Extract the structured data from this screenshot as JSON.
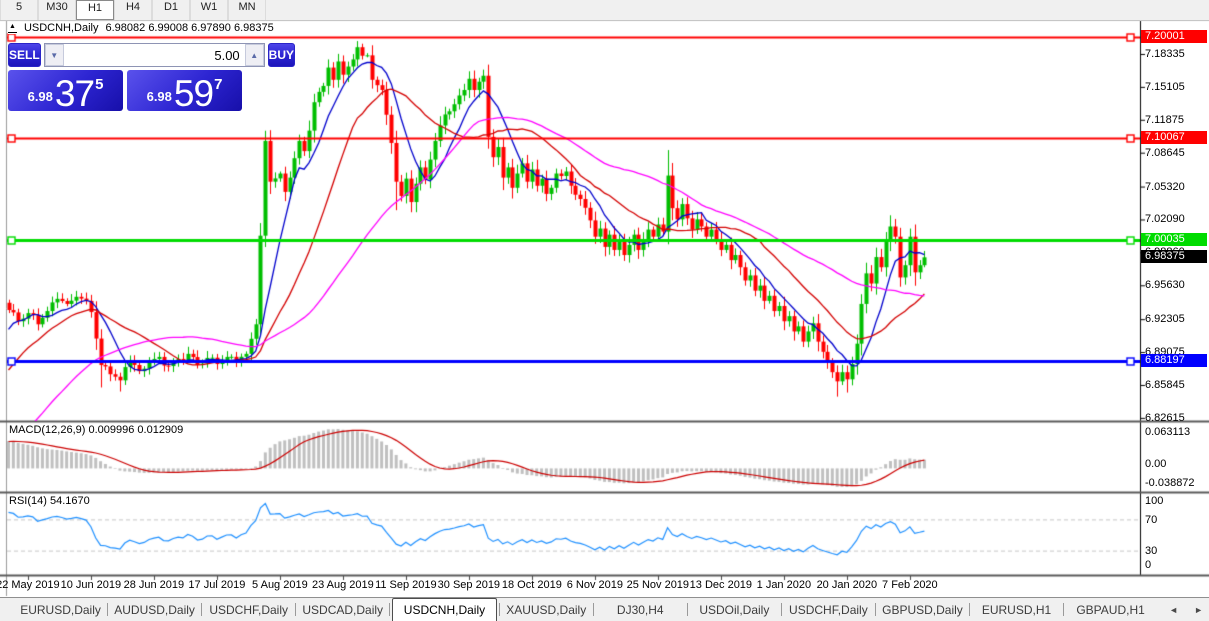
{
  "toolbar": {
    "timeframes": [
      {
        "label": "5",
        "active": false
      },
      {
        "label": "M30",
        "active": false
      },
      {
        "label": "H1",
        "active": true
      },
      {
        "label": "H4",
        "active": false
      },
      {
        "label": "D1",
        "active": false
      },
      {
        "label": "W1",
        "active": false
      },
      {
        "label": "MN",
        "active": false
      }
    ]
  },
  "title": {
    "collapse_icon": "▲",
    "symbol": "USDCNH,Daily",
    "ohlc": "6.98082 6.99008 6.97890 6.98375"
  },
  "one_click": {
    "sell_label": "SELL",
    "buy_label": "BUY",
    "volume": "5.00",
    "spinner_down": "▼",
    "spinner_up": "▲",
    "sell_price": {
      "prefix": "6.98",
      "big": "37",
      "sup": "5"
    },
    "buy_price": {
      "prefix": "6.98",
      "big": "59",
      "sup": "7"
    }
  },
  "price_axis": {
    "tick_labels": [
      "7.18335",
      "7.15105",
      "7.11875",
      "7.08645",
      "7.05320",
      "7.02090",
      "6.98860",
      "6.95630",
      "6.92305",
      "6.89075",
      "6.85845",
      "6.82615"
    ]
  },
  "current_price_label": {
    "text": "6.98375",
    "price": 6.98375,
    "bg": "#000000",
    "fg": "#ffffff"
  },
  "macd_panel": {
    "label": "MACD(12,26,9) 0.009996 0.012909",
    "axis_labels": [
      "0.063113",
      "0.00",
      "-0.038872"
    ]
  },
  "rsi_panel": {
    "label": "RSI(14) 54.1670",
    "axis_labels": [
      "100",
      "70",
      "30",
      "0"
    ]
  },
  "date_axis": {
    "labels": [
      "22 May 2019",
      "10 Jun 2019",
      "28 Jun 2019",
      "17 Jul 2019",
      "5 Aug 2019",
      "23 Aug 2019",
      "11 Sep 2019",
      "30 Sep 2019",
      "18 Oct 2019",
      "6 Nov 2019",
      "25 Nov 2019",
      "13 Dec 2019",
      "1 Jan 2020",
      "20 Jan 2020",
      "7 Feb 2020"
    ]
  },
  "tabs": {
    "items": [
      "EURUSD,Daily",
      "AUDUSD,Daily",
      "USDCHF,Daily",
      "USDCAD,Daily",
      "USDCNH,Daily",
      "XAUUSD,Daily",
      "DJ30,H4",
      "USDOil,Daily",
      "USDCHF,Daily",
      "GBPUSD,Daily",
      "EURUSD,H1",
      "GBPAUD,H1"
    ],
    "active_index": 4,
    "scroll_left": "◄",
    "scroll_right": "►"
  },
  "chart_data": {
    "type": "candlestick",
    "symbol": "USDCNH",
    "timeframe": "Daily",
    "last_ohlc": {
      "open": 6.98082,
      "high": 6.99008,
      "low": 6.9789,
      "close": 6.98375
    },
    "y_axis": {
      "min": 6.82615,
      "max": 7.20001,
      "ticks": [
        7.18335,
        7.15105,
        7.11875,
        7.08645,
        7.0532,
        7.0209,
        6.9886,
        6.9563,
        6.92305,
        6.89075,
        6.85845,
        6.82615
      ]
    },
    "x_axis_dates": [
      "22 May 2019",
      "10 Jun 2019",
      "28 Jun 2019",
      "17 Jul 2019",
      "5 Aug 2019",
      "23 Aug 2019",
      "11 Sep 2019",
      "30 Sep 2019",
      "18 Oct 2019",
      "6 Nov 2019",
      "25 Nov 2019",
      "13 Dec 2019",
      "1 Jan 2020",
      "20 Jan 2020",
      "7 Feb 2020"
    ],
    "candles_per_date_tick": 13,
    "first_date_tick_index": 4,
    "num_candles": 190,
    "close_anchors": [
      [
        0,
        6.932
      ],
      [
        2,
        6.921
      ],
      [
        4,
        6.929
      ],
      [
        6,
        6.918
      ],
      [
        8,
        6.931
      ],
      [
        10,
        6.943
      ],
      [
        12,
        6.938
      ],
      [
        14,
        6.945
      ],
      [
        16,
        6.941
      ],
      [
        17,
        6.93
      ],
      [
        18,
        6.904
      ],
      [
        19,
        6.878
      ],
      [
        21,
        6.869
      ],
      [
        23,
        6.863
      ],
      [
        24,
        6.876
      ],
      [
        25,
        6.883
      ],
      [
        27,
        6.872
      ],
      [
        29,
        6.881
      ],
      [
        31,
        6.886
      ],
      [
        33,
        6.877
      ],
      [
        35,
        6.884
      ],
      [
        37,
        6.889
      ],
      [
        39,
        6.878
      ],
      [
        41,
        6.885
      ],
      [
        43,
        6.879
      ],
      [
        45,
        6.886
      ],
      [
        47,
        6.881
      ],
      [
        49,
        6.889
      ],
      [
        51,
        6.918
      ],
      [
        52,
        7.005
      ],
      [
        53,
        7.098
      ],
      [
        54,
        7.058
      ],
      [
        56,
        7.066
      ],
      [
        57,
        7.048
      ],
      [
        58,
        7.062
      ],
      [
        60,
        7.098
      ],
      [
        61,
        7.088
      ],
      [
        63,
        7.136
      ],
      [
        65,
        7.152
      ],
      [
        66,
        7.17
      ],
      [
        67,
        7.158
      ],
      [
        68,
        7.176
      ],
      [
        69,
        7.163
      ],
      [
        71,
        7.178
      ],
      [
        72,
        7.19
      ],
      [
        74,
        7.182
      ],
      [
        75,
        7.158
      ],
      [
        77,
        7.148
      ],
      [
        79,
        7.096
      ],
      [
        80,
        7.058
      ],
      [
        81,
        7.044
      ],
      [
        82,
        7.061
      ],
      [
        83,
        7.038
      ],
      [
        84,
        7.056
      ],
      [
        85,
        7.072
      ],
      [
        86,
        7.06
      ],
      [
        88,
        7.098
      ],
      [
        90,
        7.124
      ],
      [
        92,
        7.134
      ],
      [
        94,
        7.148
      ],
      [
        95,
        7.159
      ],
      [
        96,
        7.148
      ],
      [
        98,
        7.162
      ],
      [
        99,
        7.102
      ],
      [
        100,
        7.082
      ],
      [
        101,
        7.092
      ],
      [
        102,
        7.062
      ],
      [
        103,
        7.072
      ],
      [
        104,
        7.052
      ],
      [
        105,
        7.066
      ],
      [
        106,
        7.076
      ],
      [
        107,
        7.058
      ],
      [
        108,
        7.07
      ],
      [
        109,
        7.054
      ],
      [
        110,
        7.061
      ],
      [
        111,
        7.046
      ],
      [
        112,
        7.052
      ],
      [
        113,
        7.066
      ],
      [
        115,
        7.068
      ],
      [
        116,
        7.054
      ],
      [
        118,
        7.041
      ],
      [
        120,
        7.02
      ],
      [
        121,
        7.004
      ],
      [
        122,
        7.012
      ],
      [
        123,
        6.994
      ],
      [
        124,
        7.006
      ],
      [
        125,
        6.991
      ],
      [
        126,
        7.001
      ],
      [
        127,
        6.986
      ],
      [
        128,
        6.996
      ],
      [
        129,
        7.006
      ],
      [
        130,
        6.991
      ],
      [
        131,
        7.001
      ],
      [
        132,
        7.011
      ],
      [
        133,
        7.004
      ],
      [
        134,
        7.016
      ],
      [
        135,
        7.009
      ],
      [
        136,
        7.064
      ],
      [
        137,
        7.032
      ],
      [
        138,
        7.021
      ],
      [
        139,
        7.036
      ],
      [
        140,
        7.022
      ],
      [
        141,
        7.011
      ],
      [
        142,
        7.021
      ],
      [
        143,
        7.014
      ],
      [
        144,
        7.004
      ],
      [
        145,
        7.011
      ],
      [
        146,
        7.001
      ],
      [
        147,
        6.991
      ],
      [
        148,
        6.996
      ],
      [
        149,
        6.981
      ],
      [
        150,
        6.986
      ],
      [
        151,
        6.974
      ],
      [
        152,
        6.961
      ],
      [
        153,
        6.966
      ],
      [
        154,
        6.951
      ],
      [
        155,
        6.956
      ],
      [
        156,
        6.941
      ],
      [
        157,
        6.946
      ],
      [
        158,
        6.931
      ],
      [
        159,
        6.936
      ],
      [
        160,
        6.921
      ],
      [
        161,
        6.926
      ],
      [
        162,
        6.911
      ],
      [
        163,
        6.916
      ],
      [
        164,
        6.901
      ],
      [
        165,
        6.911
      ],
      [
        166,
        6.919
      ],
      [
        167,
        6.901
      ],
      [
        168,
        6.891
      ],
      [
        169,
        6.881
      ],
      [
        170,
        6.871
      ],
      [
        171,
        6.862
      ],
      [
        172,
        6.871
      ],
      [
        173,
        6.864
      ],
      [
        174,
        6.879
      ],
      [
        175,
        6.899
      ],
      [
        176,
        6.938
      ],
      [
        177,
        6.968
      ],
      [
        178,
        6.958
      ],
      [
        179,
        6.984
      ],
      [
        180,
        6.974
      ],
      [
        181,
        6.999
      ],
      [
        182,
        7.014
      ],
      [
        183,
        7.004
      ],
      [
        184,
        6.964
      ],
      [
        185,
        6.976
      ],
      [
        186,
        7.004
      ],
      [
        187,
        6.969
      ],
      [
        188,
        6.976
      ],
      [
        189,
        6.98375
      ]
    ],
    "wick_overrides": {
      "19": {
        "low": 6.856
      },
      "23": {
        "low": 6.852
      },
      "53": {
        "high": 7.108
      },
      "56": {
        "high": 7.068
      },
      "66": {
        "high": 7.178
      },
      "72": {
        "high": 7.196
      },
      "80": {
        "low": 7.03
      },
      "83": {
        "low": 7.028
      },
      "98": {
        "high": 7.168
      },
      "121": {
        "low": 6.997
      },
      "136": {
        "high": 7.089
      },
      "171": {
        "low": 6.847
      },
      "173": {
        "low": 6.851
      },
      "182": {
        "high": 7.025
      },
      "186": {
        "high": 7.012
      },
      "189": {
        "high": 6.99,
        "low": 6.974
      }
    },
    "noise_amp": 0.0028,
    "warmup": {
      "count": 50,
      "start": 6.605,
      "end": 6.93,
      "wiggle": 0.012,
      "freq": 1.3
    },
    "colors": {
      "up": "#00BE00",
      "down": "#FF0000",
      "ma_fast": "#0000CD",
      "ma_mid": "#D40000",
      "ma_slow": "#FF00FF",
      "macd_hist": "#C0C0C0",
      "macd_signal": "#CC0000",
      "rsi": "#1E90FF",
      "axis_line": "#000000",
      "panel_border": "#5a5a5a",
      "rsi_level": "#c8c8c8"
    },
    "moving_averages": [
      {
        "period": 8
      },
      {
        "period": 20
      },
      {
        "period": 45
      }
    ],
    "hlines": [
      {
        "price": 7.20001,
        "color": "#FF0000",
        "label": "7.20001",
        "label_fg": "#ffffff",
        "width": 2
      },
      {
        "price": 7.10067,
        "color": "#FF0000",
        "label": "7.10067",
        "label_fg": "#ffffff",
        "width": 2
      },
      {
        "price": 7.00035,
        "color": "#00DC00",
        "label": "7.00035",
        "label_fg": "#ffffff",
        "width": 3
      },
      {
        "price": 6.88197,
        "color": "#0000FF",
        "label": "6.88197",
        "label_fg": "#ffffff",
        "width": 3
      }
    ],
    "macd": {
      "fast": 12,
      "slow": 26,
      "signal": 9,
      "value_signal": 0.009996,
      "value_main": 0.012909
    },
    "rsi": {
      "period": 14,
      "value": 54.167,
      "levels": [
        70,
        30
      ]
    }
  }
}
